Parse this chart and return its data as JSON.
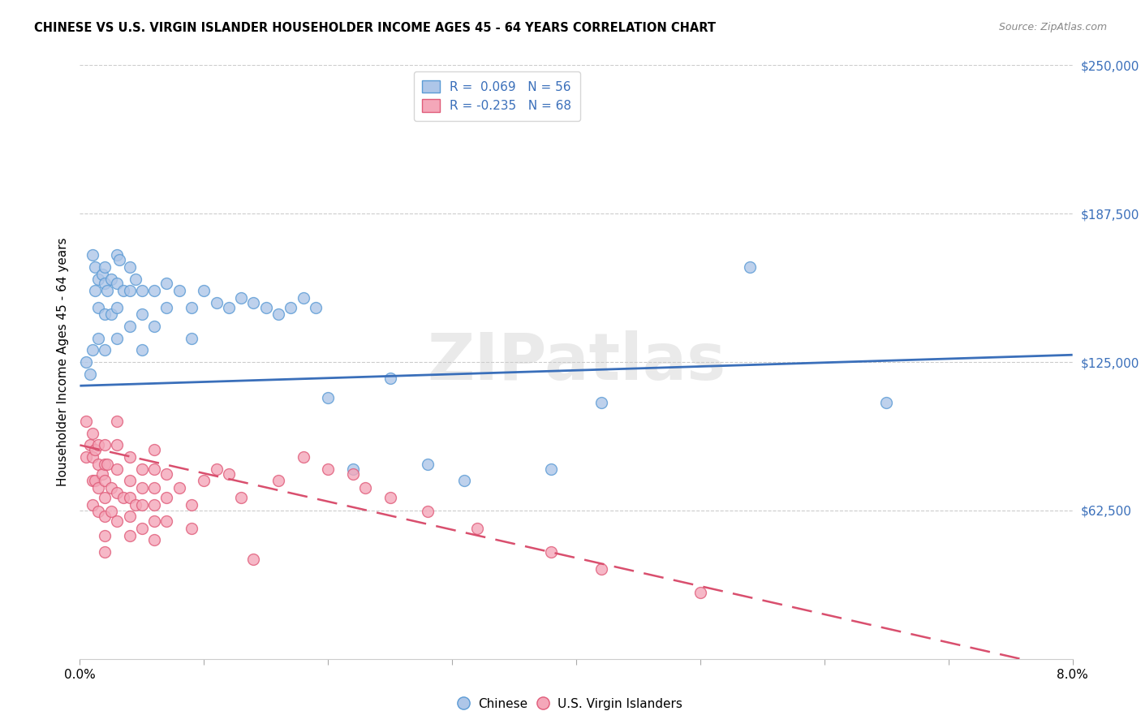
{
  "title": "CHINESE VS U.S. VIRGIN ISLANDER HOUSEHOLDER INCOME AGES 45 - 64 YEARS CORRELATION CHART",
  "source": "Source: ZipAtlas.com",
  "ylabel": "Householder Income Ages 45 - 64 years",
  "xlim": [
    0.0,
    0.08
  ],
  "ylim": [
    0,
    250000
  ],
  "yticks": [
    62500,
    125000,
    187500,
    250000
  ],
  "ytick_labels": [
    "$62,500",
    "$125,000",
    "$187,500",
    "$250,000"
  ],
  "xticks": [
    0.0,
    0.01,
    0.02,
    0.03,
    0.04,
    0.05,
    0.06,
    0.07,
    0.08
  ],
  "xtick_labels": [
    "0.0%",
    "",
    "",
    "",
    "",
    "",
    "",
    "",
    "8.0%"
  ],
  "chinese_R": 0.069,
  "chinese_N": 56,
  "virgin_R": -0.235,
  "virgin_N": 68,
  "chinese_color": "#aec6e8",
  "chinese_edge_color": "#5b9bd5",
  "virgin_color": "#f4a7b9",
  "virgin_edge_color": "#e05c7a",
  "chinese_line_color": "#3a6fba",
  "virgin_line_color": "#d94f6e",
  "watermark": "ZIPatlas",
  "chinese_line_x0": 0.0,
  "chinese_line_y0": 115000,
  "chinese_line_x1": 0.08,
  "chinese_line_y1": 128000,
  "virgin_line_x0": 0.0,
  "virgin_line_y0": 90000,
  "virgin_line_x1": 0.08,
  "virgin_line_y1": -5000,
  "chinese_x": [
    0.0005,
    0.0008,
    0.001,
    0.001,
    0.0012,
    0.0012,
    0.0015,
    0.0015,
    0.0015,
    0.0018,
    0.002,
    0.002,
    0.002,
    0.002,
    0.0022,
    0.0025,
    0.0025,
    0.003,
    0.003,
    0.003,
    0.003,
    0.0032,
    0.0035,
    0.004,
    0.004,
    0.004,
    0.0045,
    0.005,
    0.005,
    0.005,
    0.006,
    0.006,
    0.007,
    0.007,
    0.008,
    0.009,
    0.009,
    0.01,
    0.011,
    0.012,
    0.013,
    0.014,
    0.015,
    0.016,
    0.017,
    0.018,
    0.019,
    0.02,
    0.022,
    0.025,
    0.028,
    0.031,
    0.038,
    0.042,
    0.054,
    0.065
  ],
  "chinese_y": [
    125000,
    120000,
    170000,
    130000,
    165000,
    155000,
    160000,
    148000,
    135000,
    162000,
    165000,
    158000,
    145000,
    130000,
    155000,
    160000,
    145000,
    170000,
    158000,
    148000,
    135000,
    168000,
    155000,
    165000,
    155000,
    140000,
    160000,
    155000,
    145000,
    130000,
    155000,
    140000,
    158000,
    148000,
    155000,
    148000,
    135000,
    155000,
    150000,
    148000,
    152000,
    150000,
    148000,
    145000,
    148000,
    152000,
    148000,
    110000,
    80000,
    118000,
    82000,
    75000,
    80000,
    108000,
    165000,
    108000
  ],
  "virgin_x": [
    0.0005,
    0.0005,
    0.0008,
    0.001,
    0.001,
    0.001,
    0.001,
    0.0012,
    0.0012,
    0.0015,
    0.0015,
    0.0015,
    0.0015,
    0.0018,
    0.002,
    0.002,
    0.002,
    0.002,
    0.002,
    0.002,
    0.002,
    0.0022,
    0.0025,
    0.0025,
    0.003,
    0.003,
    0.003,
    0.003,
    0.003,
    0.0035,
    0.004,
    0.004,
    0.004,
    0.004,
    0.004,
    0.0045,
    0.005,
    0.005,
    0.005,
    0.005,
    0.006,
    0.006,
    0.006,
    0.006,
    0.006,
    0.006,
    0.007,
    0.007,
    0.007,
    0.008,
    0.009,
    0.009,
    0.01,
    0.011,
    0.012,
    0.013,
    0.014,
    0.016,
    0.018,
    0.02,
    0.022,
    0.023,
    0.025,
    0.028,
    0.032,
    0.038,
    0.042,
    0.05
  ],
  "virgin_y": [
    100000,
    85000,
    90000,
    95000,
    85000,
    75000,
    65000,
    88000,
    75000,
    90000,
    82000,
    72000,
    62000,
    78000,
    90000,
    82000,
    75000,
    68000,
    60000,
    52000,
    45000,
    82000,
    72000,
    62000,
    100000,
    90000,
    80000,
    70000,
    58000,
    68000,
    85000,
    75000,
    68000,
    60000,
    52000,
    65000,
    80000,
    72000,
    65000,
    55000,
    88000,
    80000,
    72000,
    65000,
    58000,
    50000,
    78000,
    68000,
    58000,
    72000,
    65000,
    55000,
    75000,
    80000,
    78000,
    68000,
    42000,
    75000,
    85000,
    80000,
    78000,
    72000,
    68000,
    62000,
    55000,
    45000,
    38000,
    28000
  ]
}
